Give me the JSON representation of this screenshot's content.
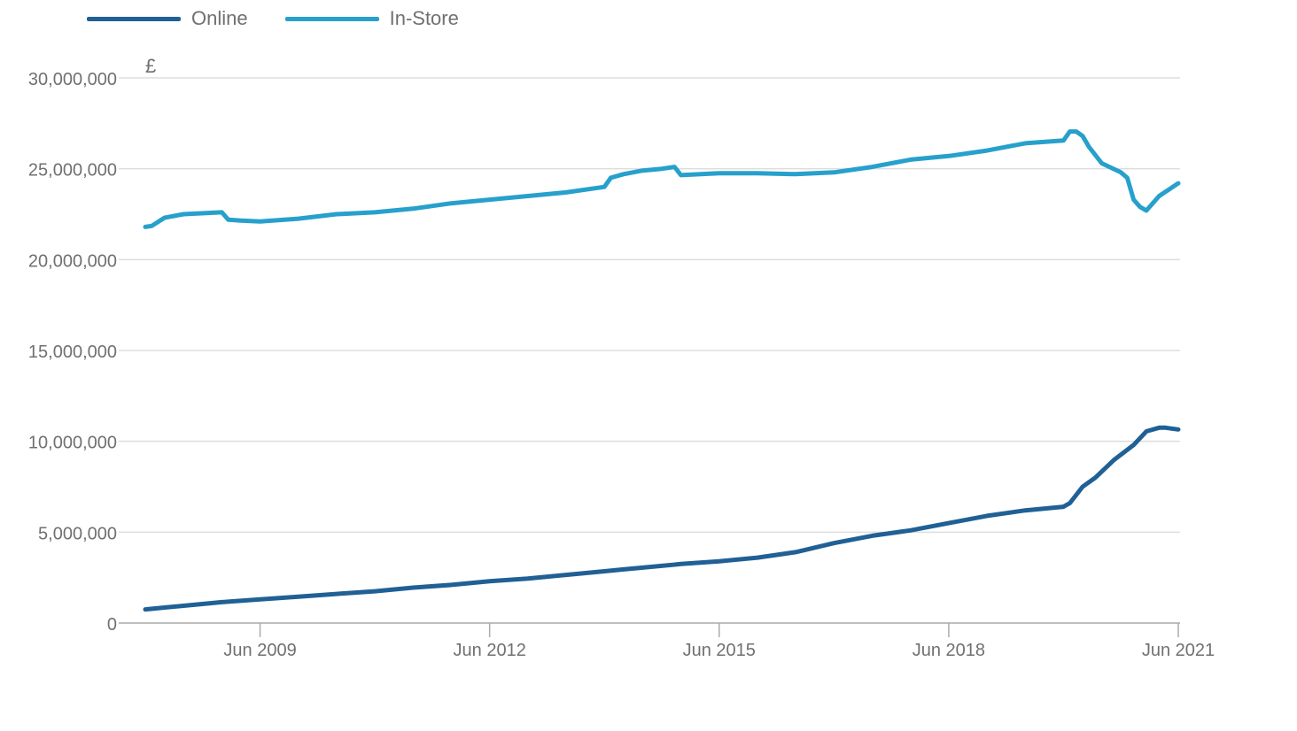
{
  "legend": {
    "online_label": "Online",
    "instore_label": "In-Store"
  },
  "colors": {
    "online": "#206095",
    "instore": "#27a0cc",
    "grid": "#dddddd",
    "axis": "#aaaaaa",
    "text": "#707070"
  },
  "chart_data": {
    "type": "line",
    "ylabel": "£",
    "ylim": [
      0,
      30000000
    ],
    "y_ticks": [
      0,
      5000000,
      10000000,
      15000000,
      20000000,
      25000000,
      30000000
    ],
    "y_tick_labels": [
      "0",
      "5,000,000",
      "10,000,000",
      "15,000,000",
      "20,000,000",
      "25,000,000",
      "30,000,000"
    ],
    "xlim": [
      "2007-12",
      "2021-06"
    ],
    "x_ticks": [
      "2009-06",
      "2012-06",
      "2015-06",
      "2018-06",
      "2021-06"
    ],
    "x_tick_labels": [
      "Jun 2009",
      "Jun 2012",
      "Jun 2015",
      "Jun 2018",
      "Jun 2021"
    ],
    "grid": true,
    "legend_position": "top-left",
    "series": [
      {
        "name": "Online",
        "color": "#206095",
        "x": [
          "2007-12",
          "2008-03",
          "2008-06",
          "2008-12",
          "2009-06",
          "2009-12",
          "2010-06",
          "2010-12",
          "2011-06",
          "2011-12",
          "2012-06",
          "2012-12",
          "2013-06",
          "2013-12",
          "2014-03",
          "2014-06",
          "2014-12",
          "2015-06",
          "2015-12",
          "2016-06",
          "2016-12",
          "2017-06",
          "2017-12",
          "2018-06",
          "2018-12",
          "2019-06",
          "2019-12",
          "2020-01",
          "2020-03",
          "2020-05",
          "2020-08",
          "2020-11",
          "2021-01",
          "2021-03",
          "2021-04",
          "2021-05",
          "2021-06"
        ],
        "y": [
          750000,
          850000,
          950000,
          1150000,
          1300000,
          1450000,
          1600000,
          1750000,
          1950000,
          2100000,
          2300000,
          2450000,
          2650000,
          2850000,
          2950000,
          3050000,
          3250000,
          3400000,
          3600000,
          3900000,
          4400000,
          4800000,
          5100000,
          5500000,
          5900000,
          6200000,
          6400000,
          6600000,
          7500000,
          8000000,
          9000000,
          9800000,
          10550000,
          10750000,
          10750000,
          10700000,
          10650000
        ]
      },
      {
        "name": "In-Store",
        "color": "#27a0cc",
        "x": [
          "2007-12",
          "2008-01",
          "2008-03",
          "2008-06",
          "2008-12",
          "2009-01",
          "2009-03",
          "2009-06",
          "2009-12",
          "2010-06",
          "2010-12",
          "2011-06",
          "2011-12",
          "2012-06",
          "2012-12",
          "2013-06",
          "2013-12",
          "2014-01",
          "2014-03",
          "2014-06",
          "2014-09",
          "2014-11",
          "2014-12",
          "2015-06",
          "2015-12",
          "2016-06",
          "2016-12",
          "2017-06",
          "2017-12",
          "2018-06",
          "2018-12",
          "2019-06",
          "2019-12",
          "2020-01",
          "2020-02",
          "2020-03",
          "2020-04",
          "2020-06",
          "2020-09",
          "2020-10",
          "2020-11",
          "2020-12",
          "2021-01",
          "2021-03",
          "2021-06"
        ],
        "y": [
          21800000,
          21850000,
          22300000,
          22500000,
          22600000,
          22200000,
          22150000,
          22100000,
          22250000,
          22500000,
          22600000,
          22800000,
          23100000,
          23300000,
          23500000,
          23700000,
          24000000,
          24500000,
          24700000,
          24900000,
          25000000,
          25100000,
          24650000,
          24750000,
          24750000,
          24700000,
          24800000,
          25100000,
          25500000,
          25700000,
          26000000,
          26400000,
          26550000,
          27050000,
          27050000,
          26800000,
          26200000,
          25300000,
          24800000,
          24500000,
          23300000,
          22900000,
          22700000,
          23500000,
          24200000
        ]
      }
    ]
  }
}
